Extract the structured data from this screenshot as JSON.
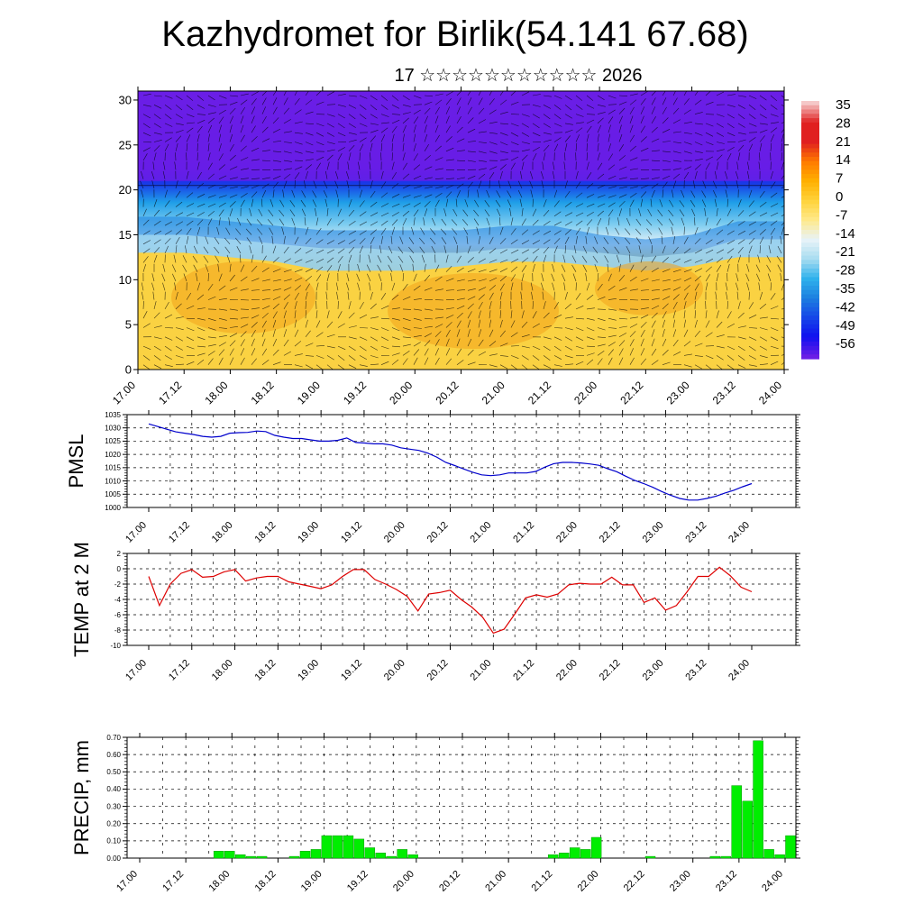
{
  "page": {
    "title": "Kazhydromet for Birlik(54.141 67.68)",
    "subtitle": "17 ☆☆☆☆☆☆☆☆☆☆☆ 2026"
  },
  "colors": {
    "pmsl_line": "#0000cc",
    "temp_line": "#dd0000",
    "precip_bar": "#00ee00",
    "precip_bar_stroke": "#009900",
    "grid": "#000000"
  },
  "chart_data": [
    {
      "id": "cross_section",
      "type": "heatmap",
      "title": "",
      "ylabel": "",
      "ylim": [
        0,
        31
      ],
      "yticks": [
        0,
        5,
        10,
        15,
        20,
        25,
        30
      ],
      "xlabels": [
        "17.00",
        "17.12",
        "18.00",
        "18.12",
        "19.00",
        "19.12",
        "20.00",
        "20.12",
        "21.00",
        "21.12",
        "22.00",
        "22.12",
        "23.00",
        "23.12",
        "24.00"
      ],
      "colorbar": {
        "labels": [
          "35",
          "28",
          "21",
          "14",
          "7",
          "0",
          "-7",
          "-14",
          "-21",
          "-28",
          "-35",
          "-42",
          "-49",
          "-56"
        ],
        "stops": [
          {
            "v": 35,
            "c": "#f5c8c8"
          },
          {
            "v": 28,
            "c": "#e02020"
          },
          {
            "v": 21,
            "c": "#e02020"
          },
          {
            "v": 14,
            "c": "#ff7a00"
          },
          {
            "v": 7,
            "c": "#ffb000"
          },
          {
            "v": 0,
            "c": "#ffd23a"
          },
          {
            "v": -7,
            "c": "#ffe98a"
          },
          {
            "v": -14,
            "c": "#e8f3f8"
          },
          {
            "v": -21,
            "c": "#a8dcf0"
          },
          {
            "v": -28,
            "c": "#2fb2ec"
          },
          {
            "v": -35,
            "c": "#1c7fe0"
          },
          {
            "v": -42,
            "c": "#1646e8"
          },
          {
            "v": -49,
            "c": "#1010f0"
          },
          {
            "v": -56,
            "c": "#6a1de6"
          }
        ]
      },
      "bands": [
        {
          "name": "upper",
          "h": [
            21,
            21,
            21,
            21,
            21,
            21,
            21,
            21,
            21,
            21,
            21,
            21,
            21,
            21,
            21
          ],
          "color": "#6a1de6"
        },
        {
          "name": "mid",
          "h": [
            17,
            17,
            16.5,
            16,
            15.5,
            15.5,
            15.5,
            15.5,
            16,
            16,
            15,
            14.5,
            15,
            16.5,
            16.5
          ],
          "color": "#1c7fe0"
        },
        {
          "name": "light",
          "h": [
            15,
            15,
            14.5,
            14,
            13.5,
            13.5,
            13,
            13,
            13.5,
            13.5,
            13,
            12.5,
            13,
            14.5,
            14.5
          ],
          "color": "#a8dcf0"
        },
        {
          "name": "warm",
          "h": [
            13,
            13,
            12.5,
            12,
            11,
            11,
            11,
            11.5,
            12,
            12,
            11.5,
            11,
            11.5,
            12.5,
            12.5
          ],
          "color": "#ffd23a"
        }
      ]
    },
    {
      "id": "pmsl",
      "type": "line",
      "ylabel": "PMSL",
      "ylim": [
        1000,
        1035
      ],
      "yticks": [
        1000,
        1005,
        1010,
        1015,
        1020,
        1025,
        1030,
        1035
      ],
      "xlabels": [
        "17.00",
        "17.12",
        "18.00",
        "18.12",
        "19.00",
        "19.12",
        "20.00",
        "20.12",
        "21.00",
        "21.12",
        "22.00",
        "22.12",
        "23.00",
        "23.12",
        "24.00"
      ],
      "values": [
        1031.5,
        1030.5,
        1029.5,
        1028.5,
        1028,
        1027.5,
        1026.8,
        1026.5,
        1026.8,
        1028,
        1028.2,
        1028.3,
        1028.8,
        1028.6,
        1027.2,
        1026.5,
        1026,
        1026,
        1025.5,
        1025,
        1025,
        1025.3,
        1026.2,
        1024.5,
        1024.3,
        1024,
        1024,
        1023.5,
        1022.5,
        1022,
        1021.5,
        1020.5,
        1019,
        1017,
        1015.8,
        1014.5,
        1013.3,
        1012.3,
        1012,
        1012.3,
        1013,
        1013,
        1013,
        1013.6,
        1015.2,
        1016.5,
        1017,
        1017,
        1016.8,
        1016.4,
        1015.9,
        1014.6,
        1013.5,
        1011.8,
        1010.2,
        1009,
        1007.6,
        1006,
        1004.6,
        1003.4,
        1002.8,
        1002.8,
        1003.4,
        1004.2,
        1005.4,
        1006.5,
        1007.8,
        1009
      ]
    },
    {
      "id": "temp",
      "type": "line",
      "ylabel": "TEMP at 2 M",
      "ylim": [
        -10,
        2
      ],
      "yticks": [
        -10,
        -8,
        -6,
        -4,
        -2,
        0,
        2
      ],
      "xlabels": [
        "17.00",
        "17.12",
        "18.00",
        "18.12",
        "19.00",
        "19.12",
        "20.00",
        "20.12",
        "21.00",
        "21.12",
        "22.00",
        "22.12",
        "23.00",
        "23.12",
        "24.00"
      ],
      "values": [
        -1,
        -4.8,
        -2,
        -0.6,
        -0.1,
        -1.1,
        -1,
        -0.4,
        -0.1,
        -1.6,
        -1.2,
        -1,
        -1,
        -1.7,
        -2,
        -2.3,
        -2.6,
        -2.1,
        -1,
        -0.1,
        -0.1,
        -1.4,
        -2,
        -2.7,
        -3.6,
        -5.5,
        -3.3,
        -3.1,
        -2.8,
        -4,
        -5,
        -6.3,
        -8.4,
        -7.9,
        -5.9,
        -3.8,
        -3.4,
        -3.7,
        -3.3,
        -2.1,
        -1.9,
        -2,
        -2,
        -1.1,
        -2.1,
        -2.1,
        -4.4,
        -3.8,
        -5.4,
        -4.8,
        -3,
        -1,
        -1,
        0.2,
        -0.9,
        -2.4,
        -3
      ]
    },
    {
      "id": "precip",
      "type": "bar",
      "ylabel": "PRECIP, mm",
      "ylim": [
        0,
        0.7
      ],
      "yticks": [
        0,
        0.1,
        0.2,
        0.3,
        0.4,
        0.5,
        0.6,
        0.7
      ],
      "ytick_labels": [
        "0.00",
        "0.10",
        "0.20",
        "0.30",
        "0.40",
        "0.50",
        "0.60",
        "0.70"
      ],
      "xlabels": [
        "17.00",
        "17.12",
        "18.00",
        "18.12",
        "19.00",
        "19.12",
        "20.00",
        "20.12",
        "21.00",
        "21.12",
        "22.00",
        "22.12",
        "23.00",
        "23.12",
        "24.00"
      ],
      "values": [
        0,
        0,
        0,
        0,
        0,
        0,
        0,
        0,
        0.04,
        0.04,
        0.02,
        0.01,
        0.01,
        0,
        0,
        0.01,
        0.04,
        0.05,
        0.13,
        0.13,
        0.13,
        0.11,
        0.06,
        0.03,
        0.01,
        0.05,
        0.02,
        0,
        0,
        0,
        0,
        0,
        0,
        0,
        0,
        0,
        0,
        0,
        0,
        0.02,
        0.03,
        0.06,
        0.05,
        0.12,
        0,
        0,
        0,
        0,
        0.01,
        0,
        0,
        0,
        0,
        0,
        0.01,
        0.01,
        0.42,
        0.33,
        0.68,
        0.05,
        0.02,
        0.13
      ]
    }
  ]
}
